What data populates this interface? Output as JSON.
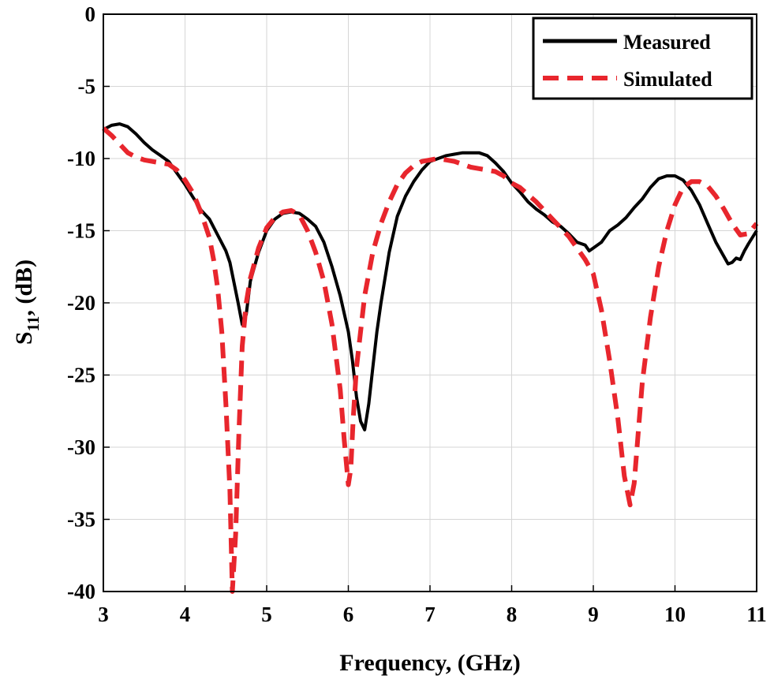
{
  "chart_data": {
    "type": "line",
    "title": "",
    "xlabel": "Frequency, (GHz)",
    "ylabel_main": "S",
    "ylabel_sub": "11",
    "ylabel_rest": ", (dB)",
    "xlim": [
      3,
      11
    ],
    "ylim": [
      -40,
      0
    ],
    "xticks": [
      3,
      4,
      5,
      6,
      7,
      8,
      9,
      10,
      11
    ],
    "yticks": [
      0,
      -5,
      -10,
      -15,
      -20,
      -25,
      -30,
      -35,
      -40
    ],
    "grid": true,
    "legend_position": "top-right",
    "series": [
      {
        "name": "Measured",
        "color": "#000000",
        "style": "solid",
        "points": [
          [
            3.0,
            -8.0
          ],
          [
            3.1,
            -7.7
          ],
          [
            3.2,
            -7.6
          ],
          [
            3.3,
            -7.8
          ],
          [
            3.4,
            -8.3
          ],
          [
            3.5,
            -8.9
          ],
          [
            3.6,
            -9.4
          ],
          [
            3.7,
            -9.8
          ],
          [
            3.8,
            -10.2
          ],
          [
            3.9,
            -11.0
          ],
          [
            4.0,
            -11.8
          ],
          [
            4.1,
            -12.7
          ],
          [
            4.2,
            -13.6
          ],
          [
            4.3,
            -14.2
          ],
          [
            4.4,
            -15.3
          ],
          [
            4.5,
            -16.4
          ],
          [
            4.55,
            -17.2
          ],
          [
            4.6,
            -18.6
          ],
          [
            4.65,
            -20.0
          ],
          [
            4.7,
            -21.5
          ],
          [
            4.75,
            -20.8
          ],
          [
            4.8,
            -18.5
          ],
          [
            4.9,
            -16.5
          ],
          [
            5.0,
            -15.0
          ],
          [
            5.1,
            -14.2
          ],
          [
            5.2,
            -13.8
          ],
          [
            5.3,
            -13.7
          ],
          [
            5.4,
            -13.8
          ],
          [
            5.5,
            -14.2
          ],
          [
            5.6,
            -14.7
          ],
          [
            5.7,
            -15.8
          ],
          [
            5.8,
            -17.5
          ],
          [
            5.9,
            -19.5
          ],
          [
            6.0,
            -22.0
          ],
          [
            6.05,
            -24.0
          ],
          [
            6.1,
            -26.5
          ],
          [
            6.15,
            -28.2
          ],
          [
            6.2,
            -28.8
          ],
          [
            6.25,
            -27.0
          ],
          [
            6.3,
            -24.5
          ],
          [
            6.35,
            -22.0
          ],
          [
            6.4,
            -20.0
          ],
          [
            6.5,
            -16.5
          ],
          [
            6.6,
            -14.0
          ],
          [
            6.7,
            -12.6
          ],
          [
            6.8,
            -11.6
          ],
          [
            6.9,
            -10.8
          ],
          [
            7.0,
            -10.2
          ],
          [
            7.1,
            -10.0
          ],
          [
            7.2,
            -9.8
          ],
          [
            7.3,
            -9.7
          ],
          [
            7.4,
            -9.6
          ],
          [
            7.5,
            -9.6
          ],
          [
            7.6,
            -9.6
          ],
          [
            7.7,
            -9.8
          ],
          [
            7.8,
            -10.3
          ],
          [
            7.9,
            -10.9
          ],
          [
            8.0,
            -11.7
          ],
          [
            8.1,
            -12.3
          ],
          [
            8.2,
            -13.0
          ],
          [
            8.3,
            -13.5
          ],
          [
            8.4,
            -13.9
          ],
          [
            8.5,
            -14.4
          ],
          [
            8.6,
            -14.7
          ],
          [
            8.7,
            -15.2
          ],
          [
            8.8,
            -15.8
          ],
          [
            8.9,
            -16.0
          ],
          [
            8.95,
            -16.4
          ],
          [
            9.0,
            -16.2
          ],
          [
            9.1,
            -15.8
          ],
          [
            9.2,
            -15.0
          ],
          [
            9.3,
            -14.6
          ],
          [
            9.4,
            -14.1
          ],
          [
            9.5,
            -13.4
          ],
          [
            9.6,
            -12.8
          ],
          [
            9.7,
            -12.0
          ],
          [
            9.8,
            -11.4
          ],
          [
            9.9,
            -11.2
          ],
          [
            10.0,
            -11.2
          ],
          [
            10.1,
            -11.5
          ],
          [
            10.2,
            -12.2
          ],
          [
            10.3,
            -13.2
          ],
          [
            10.4,
            -14.5
          ],
          [
            10.5,
            -15.8
          ],
          [
            10.6,
            -16.8
          ],
          [
            10.65,
            -17.3
          ],
          [
            10.7,
            -17.2
          ],
          [
            10.75,
            -16.9
          ],
          [
            10.8,
            -17.0
          ],
          [
            10.85,
            -16.4
          ],
          [
            10.9,
            -15.9
          ],
          [
            11.0,
            -15.0
          ]
        ]
      },
      {
        "name": "Simulated",
        "color": "#e8262d",
        "style": "dashed",
        "points": [
          [
            3.0,
            -7.9
          ],
          [
            3.1,
            -8.4
          ],
          [
            3.2,
            -9.0
          ],
          [
            3.3,
            -9.6
          ],
          [
            3.4,
            -9.9
          ],
          [
            3.5,
            -10.1
          ],
          [
            3.6,
            -10.2
          ],
          [
            3.7,
            -10.3
          ],
          [
            3.8,
            -10.4
          ],
          [
            3.9,
            -10.8
          ],
          [
            4.0,
            -11.5
          ],
          [
            4.1,
            -12.4
          ],
          [
            4.2,
            -13.8
          ],
          [
            4.3,
            -15.5
          ],
          [
            4.35,
            -17.0
          ],
          [
            4.4,
            -19.0
          ],
          [
            4.45,
            -22.0
          ],
          [
            4.5,
            -27.0
          ],
          [
            4.55,
            -33.0
          ],
          [
            4.58,
            -40.0
          ],
          [
            4.62,
            -36.0
          ],
          [
            4.66,
            -29.0
          ],
          [
            4.7,
            -23.0
          ],
          [
            4.75,
            -20.0
          ],
          [
            4.8,
            -18.3
          ],
          [
            4.9,
            -16.2
          ],
          [
            5.0,
            -14.8
          ],
          [
            5.1,
            -14.1
          ],
          [
            5.2,
            -13.7
          ],
          [
            5.3,
            -13.6
          ],
          [
            5.4,
            -13.9
          ],
          [
            5.5,
            -15.0
          ],
          [
            5.6,
            -16.5
          ],
          [
            5.7,
            -18.5
          ],
          [
            5.8,
            -21.5
          ],
          [
            5.9,
            -26.0
          ],
          [
            5.95,
            -29.5
          ],
          [
            6.0,
            -32.6
          ],
          [
            6.03,
            -31.5
          ],
          [
            6.06,
            -28.0
          ],
          [
            6.1,
            -24.5
          ],
          [
            6.2,
            -19.5
          ],
          [
            6.3,
            -16.5
          ],
          [
            6.4,
            -14.5
          ],
          [
            6.5,
            -13.0
          ],
          [
            6.6,
            -11.8
          ],
          [
            6.7,
            -11.0
          ],
          [
            6.8,
            -10.5
          ],
          [
            6.9,
            -10.2
          ],
          [
            7.0,
            -10.1
          ],
          [
            7.1,
            -10.0
          ],
          [
            7.2,
            -10.1
          ],
          [
            7.3,
            -10.2
          ],
          [
            7.4,
            -10.4
          ],
          [
            7.5,
            -10.6
          ],
          [
            7.6,
            -10.7
          ],
          [
            7.7,
            -10.8
          ],
          [
            7.8,
            -10.9
          ],
          [
            7.9,
            -11.2
          ],
          [
            8.0,
            -11.7
          ],
          [
            8.1,
            -12.0
          ],
          [
            8.2,
            -12.5
          ],
          [
            8.3,
            -13.0
          ],
          [
            8.4,
            -13.6
          ],
          [
            8.5,
            -14.2
          ],
          [
            8.6,
            -14.8
          ],
          [
            8.7,
            -15.4
          ],
          [
            8.8,
            -16.2
          ],
          [
            8.9,
            -17.0
          ],
          [
            9.0,
            -18.0
          ],
          [
            9.1,
            -20.5
          ],
          [
            9.2,
            -24.0
          ],
          [
            9.3,
            -28.0
          ],
          [
            9.38,
            -32.0
          ],
          [
            9.45,
            -34.0
          ],
          [
            9.5,
            -32.5
          ],
          [
            9.55,
            -29.0
          ],
          [
            9.6,
            -25.5
          ],
          [
            9.7,
            -21.0
          ],
          [
            9.8,
            -17.5
          ],
          [
            9.9,
            -15.0
          ],
          [
            10.0,
            -13.2
          ],
          [
            10.1,
            -12.0
          ],
          [
            10.2,
            -11.6
          ],
          [
            10.3,
            -11.6
          ],
          [
            10.4,
            -11.9
          ],
          [
            10.5,
            -12.6
          ],
          [
            10.6,
            -13.5
          ],
          [
            10.7,
            -14.5
          ],
          [
            10.8,
            -15.3
          ],
          [
            10.9,
            -15.2
          ],
          [
            11.0,
            -14.5
          ]
        ]
      }
    ]
  }
}
